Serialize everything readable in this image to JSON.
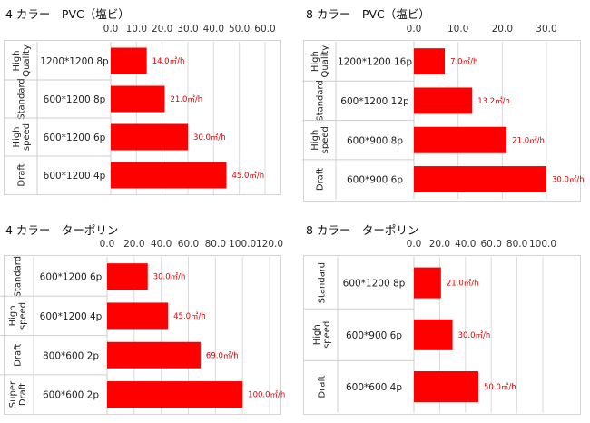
{
  "charts": [
    {
      "title": "4 カラー　PVC（塩ビ）",
      "chart_data": {
        "type": "bar",
        "title": "4 カラー　PVC（塩ビ）",
        "orientation": "horizontal",
        "xlim": [
          0,
          60
        ],
        "ticks": [
          "0.0",
          "10.0",
          "20.0",
          "30.0",
          "40.0",
          "50.0",
          "60.0"
        ],
        "tick_values": [
          0,
          10,
          20,
          30,
          40,
          50,
          60
        ],
        "grid": true,
        "rows": [
          {
            "group": "High Quality",
            "group_lines": [
              "High",
              "Quality"
            ],
            "resolution": "1200*1200 8p",
            "value": 14.0,
            "label": "14.0㎡/h"
          },
          {
            "group": "Standard",
            "group_lines": [
              "Standard"
            ],
            "resolution": "600*1200 8p",
            "value": 21.0,
            "label": "21.0㎡/h"
          },
          {
            "group": "High speed",
            "group_lines": [
              "High",
              "speed"
            ],
            "resolution": "600*1200 6p",
            "value": 30.0,
            "label": "30.0㎡/h"
          },
          {
            "group": "Draft",
            "group_lines": [
              "Draft"
            ],
            "resolution": "600*1200 4p",
            "value": 45.0,
            "label": "45.0㎡/h"
          }
        ]
      }
    },
    {
      "title": "8 カラー　PVC（塩ビ）",
      "chart_data": {
        "type": "bar",
        "title": "8 カラー　PVC（塩ビ）",
        "orientation": "horizontal",
        "xlim": [
          0,
          30
        ],
        "ticks": [
          "0.0",
          "10.0",
          "20.0",
          "30.0"
        ],
        "tick_values": [
          0,
          10,
          20,
          30
        ],
        "grid": true,
        "rows": [
          {
            "group": "High Quality",
            "group_lines": [
              "High",
              "Quality"
            ],
            "resolution": "1200*1200 16p",
            "value": 7.0,
            "label": "7.0㎡/h"
          },
          {
            "group": "Standard",
            "group_lines": [
              "Standard"
            ],
            "resolution": "600*1200 12p",
            "value": 13.2,
            "label": "13.2㎡/h"
          },
          {
            "group": "High speed",
            "group_lines": [
              "High",
              "speed"
            ],
            "resolution": "600*900 8p",
            "value": 21.0,
            "label": "21.0㎡/h"
          },
          {
            "group": "Draft",
            "group_lines": [
              "Draft"
            ],
            "resolution": "600*900 6p",
            "value": 30.0,
            "label": "30.0㎡/h"
          }
        ]
      }
    },
    {
      "title": "4 カラー　ターポリン",
      "chart_data": {
        "type": "bar",
        "title": "4 カラー　ターポリン",
        "orientation": "horizontal",
        "xlim": [
          0,
          120
        ],
        "ticks": [
          "0.0",
          "20.0",
          "40.0",
          "60.0",
          "80.0",
          "100.0",
          "120.0"
        ],
        "tick_values": [
          0,
          20,
          40,
          60,
          80,
          100,
          120
        ],
        "grid": true,
        "rows": [
          {
            "group": "Standard",
            "group_lines": [
              "Standard"
            ],
            "resolution": "600*1200 6p",
            "value": 30.0,
            "label": "30.0㎡/h"
          },
          {
            "group": "High speed",
            "group_lines": [
              "High",
              "speed"
            ],
            "resolution": "600*1200 4p",
            "value": 45.0,
            "label": "45.0㎡/h"
          },
          {
            "group": "Draft",
            "group_lines": [
              "Draft"
            ],
            "resolution": "800*600 2p",
            "value": 69.0,
            "label": "69.0㎡/h"
          },
          {
            "group": "Super Draft",
            "group_lines": [
              "Super",
              "Draft"
            ],
            "resolution": "600*600 2p",
            "value": 100.0,
            "label": "100.0㎡/h"
          }
        ]
      }
    },
    {
      "title": "8 カラー　ターポリン",
      "chart_data": {
        "type": "bar",
        "title": "8 カラー　ターポリン",
        "orientation": "horizontal",
        "xlim": [
          0,
          100
        ],
        "ticks": [
          "0.0",
          "20.0",
          "40.0",
          "60.0",
          "80.0",
          "100.0"
        ],
        "tick_values": [
          0,
          20,
          40,
          60,
          80,
          100
        ],
        "grid": true,
        "rows": [
          {
            "group": "Standard",
            "group_lines": [
              "Standard"
            ],
            "resolution": "600*1200 8p",
            "value": 21.0,
            "label": "21.0㎡/h"
          },
          {
            "group": "High speed",
            "group_lines": [
              "High",
              "speed"
            ],
            "resolution": "600*900 6p",
            "value": 30.0,
            "label": "30.0㎡/h"
          },
          {
            "group": "Draft",
            "group_lines": [
              "Draft"
            ],
            "resolution": "600*600 4p",
            "value": 50.0,
            "label": "50.0㎡/h"
          }
        ]
      }
    }
  ],
  "colors": {
    "bar": "#ff0000",
    "label": "#e00000",
    "grid": "#d9d9d9",
    "frame": "#cfcfcf"
  }
}
